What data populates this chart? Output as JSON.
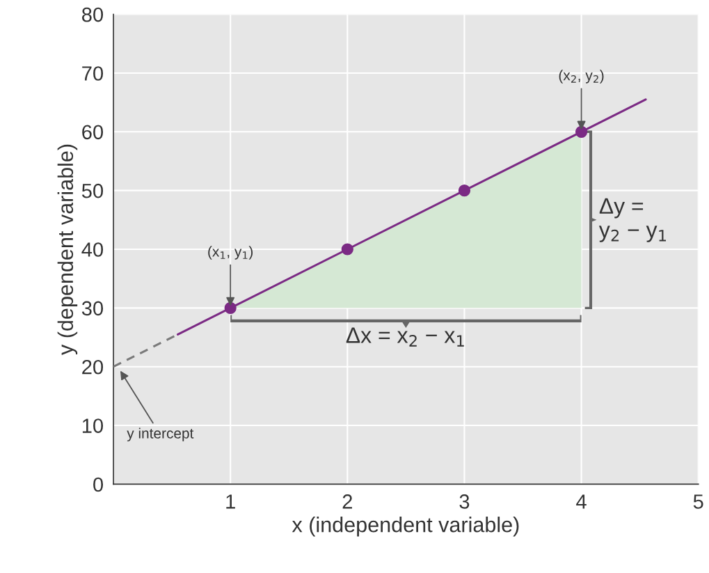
{
  "chart_data": {
    "type": "line",
    "xlabel": "x (independent variable)",
    "ylabel": "y (dependent variable)",
    "xlim": [
      0,
      5
    ],
    "xticks": [
      1,
      2,
      3,
      4,
      5
    ],
    "ylim": [
      0,
      80
    ],
    "yticks": [
      0,
      10,
      20,
      30,
      40,
      50,
      60,
      70,
      80
    ],
    "grid": true,
    "series": [
      {
        "color": "#7b2a84",
        "x": [
          0.55,
          4.55
        ],
        "values": [
          25.5,
          65.5
        ],
        "line_style": "solid",
        "marker": "none"
      },
      {
        "color": "#7a7a7a",
        "x": [
          0,
          0.55
        ],
        "values": [
          20,
          25.5
        ],
        "line_style": "dashed",
        "marker": "none"
      },
      {
        "type": "scatter",
        "color": "#7b2a84",
        "x": [
          1,
          2,
          3,
          4
        ],
        "values": [
          30,
          40,
          50,
          60
        ],
        "marker": "circle"
      }
    ],
    "annotations": [
      {
        "text": "(x$_{1}$, y$_{1}$)",
        "x": 1,
        "y": 30
      },
      {
        "text": "(x$_{2}$, y$_{2}$)",
        "x": 4,
        "y": 60
      },
      "y intercept",
      "Δy =\ny$_{2}$ − y$_{1}$",
      "Δx = x$_{2}$ − x$_{1}$"
    ]
  }
}
